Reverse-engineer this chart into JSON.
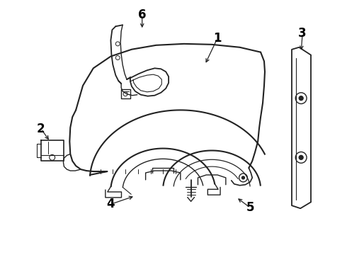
{
  "background_color": "#ffffff",
  "line_color": "#222222",
  "label_color": "#000000",
  "figsize": [
    4.9,
    3.6
  ],
  "dpi": 100,
  "label_fontsize": 12
}
